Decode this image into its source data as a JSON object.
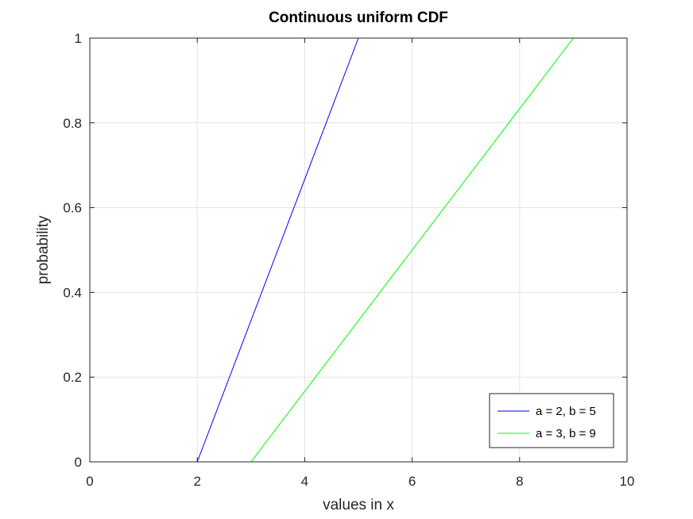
{
  "chart_data": {
    "type": "line",
    "title": "Continuous uniform CDF",
    "xlabel": "values in x",
    "ylabel": "probability",
    "xlim": [
      0,
      10
    ],
    "ylim": [
      0,
      1
    ],
    "xticks": [
      0,
      2,
      4,
      6,
      8,
      10
    ],
    "yticks": [
      0,
      0.2,
      0.4,
      0.6,
      0.8,
      1
    ],
    "xtick_labels": [
      "0",
      "2",
      "4",
      "6",
      "8",
      "10"
    ],
    "ytick_labels": [
      "0",
      "0.2",
      "0.4",
      "0.6",
      "0.8",
      "1"
    ],
    "grid": true,
    "legend_position": "bottom-right",
    "series": [
      {
        "name": "a = 2, b = 5",
        "color": "#0000ff",
        "x": [
          0,
          2,
          5,
          10
        ],
        "y": [
          0,
          0,
          1,
          1
        ]
      },
      {
        "name": "a = 3, b = 9",
        "color": "#00ff00",
        "x": [
          0,
          3,
          9,
          10
        ],
        "y": [
          0,
          0,
          1,
          1
        ]
      }
    ]
  }
}
